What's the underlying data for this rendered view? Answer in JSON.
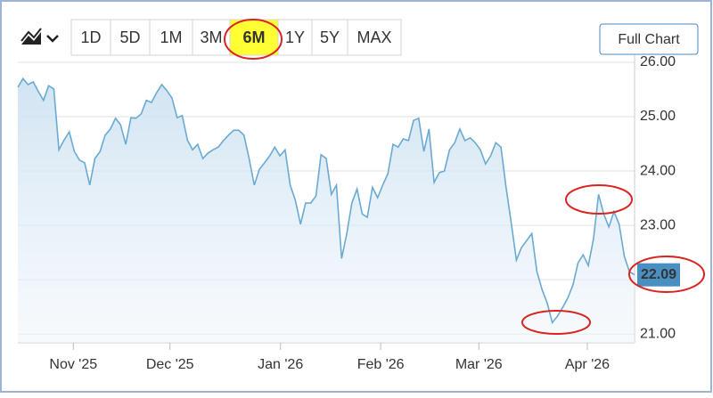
{
  "chart_data": {
    "type": "area",
    "ranges": [
      "1D",
      "5D",
      "1M",
      "3M",
      "6M",
      "1Y",
      "5Y",
      "MAX"
    ],
    "selected_range": "6M",
    "button": "Full Chart",
    "last_price": 22.09,
    "color": "#6aaad2",
    "grid": true,
    "values": [
      25.54,
      25.7,
      25.59,
      25.64,
      25.46,
      25.3,
      25.57,
      25.51,
      24.39,
      24.57,
      24.72,
      24.36,
      24.2,
      24.15,
      23.74,
      24.23,
      24.36,
      24.66,
      24.77,
      24.97,
      24.85,
      24.49,
      24.98,
      24.97,
      25.05,
      25.3,
      25.26,
      25.44,
      25.59,
      25.48,
      25.34,
      24.98,
      25.02,
      24.57,
      24.39,
      24.49,
      24.23,
      24.33,
      24.39,
      24.44,
      24.56,
      24.66,
      24.75,
      24.75,
      24.66,
      24.23,
      23.74,
      24.03,
      24.15,
      24.28,
      24.44,
      24.28,
      24.39,
      23.74,
      23.46,
      23.02,
      23.41,
      23.41,
      23.54,
      24.3,
      24.23,
      23.57,
      23.74,
      22.39,
      22.85,
      23.41,
      23.67,
      23.21,
      23.15,
      23.7,
      23.51,
      23.74,
      23.95,
      24.49,
      24.44,
      24.59,
      24.56,
      24.93,
      24.97,
      24.36,
      24.77,
      23.79,
      23.97,
      24.0,
      24.39,
      24.52,
      24.77,
      24.56,
      24.61,
      24.52,
      24.39,
      24.13,
      24.28,
      24.52,
      24.44,
      23.7,
      23.05,
      22.36,
      22.59,
      22.72,
      22.85,
      22.15,
      21.82,
      21.57,
      21.21,
      21.33,
      21.49,
      21.66,
      21.9,
      22.31,
      22.46,
      22.26,
      22.75,
      23.57,
      23.21,
      22.97,
      23.25,
      23.02,
      22.43,
      22.15,
      22.09
    ],
    "xlim": [
      0,
      120
    ],
    "xticks": [
      {
        "value": 10.8,
        "label": "Nov '25"
      },
      {
        "value": 29.6,
        "label": "Dec '25"
      },
      {
        "value": 51.1,
        "label": "Jan '26"
      },
      {
        "value": 70.6,
        "label": "Feb '26"
      },
      {
        "value": 89.7,
        "label": "Mar '26"
      },
      {
        "value": 110.8,
        "label": "Apr '26"
      }
    ],
    "ylim": [
      20.84,
      26.13
    ],
    "yticks": [
      {
        "value": 21,
        "label": "21.00"
      },
      {
        "value": 22,
        "label": "22.00"
      },
      {
        "value": 23,
        "label": "23.00"
      },
      {
        "value": 24,
        "label": "24.00"
      },
      {
        "value": 25,
        "label": "25.00"
      },
      {
        "value": 26,
        "label": "26.00"
      }
    ]
  }
}
